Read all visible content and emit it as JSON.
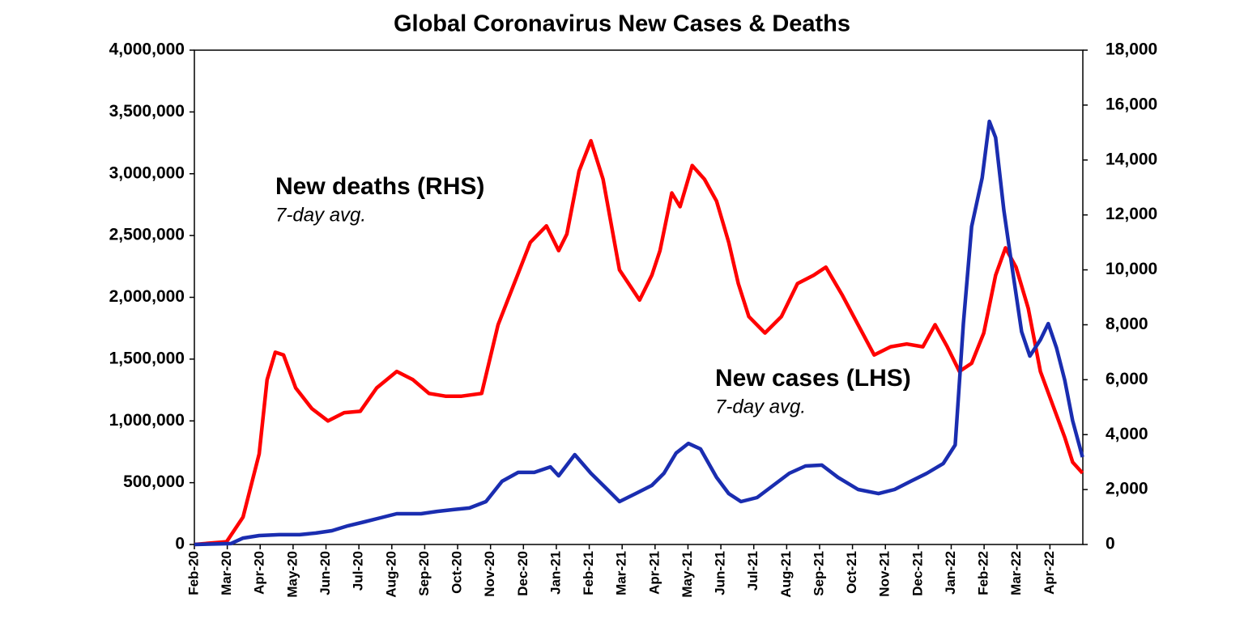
{
  "chart_data": {
    "type": "line",
    "title": "Global Coronavirus New Cases & Deaths",
    "xlim": [
      0,
      27
    ],
    "xticks": [
      {
        "value": 0,
        "label": "Feb-20"
      },
      {
        "value": 1,
        "label": "Mar-20"
      },
      {
        "value": 2,
        "label": "Apr-20"
      },
      {
        "value": 3,
        "label": "May-20"
      },
      {
        "value": 4,
        "label": "Jun-20"
      },
      {
        "value": 5,
        "label": "Jul-20"
      },
      {
        "value": 6,
        "label": "Aug-20"
      },
      {
        "value": 7,
        "label": "Sep-20"
      },
      {
        "value": 8,
        "label": "Oct-20"
      },
      {
        "value": 9,
        "label": "Nov-20"
      },
      {
        "value": 10,
        "label": "Dec-20"
      },
      {
        "value": 11,
        "label": "Jan-21"
      },
      {
        "value": 12,
        "label": "Feb-21"
      },
      {
        "value": 13,
        "label": "Mar-21"
      },
      {
        "value": 14,
        "label": "Apr-21"
      },
      {
        "value": 15,
        "label": "May-21"
      },
      {
        "value": 16,
        "label": "Jun-21"
      },
      {
        "value": 17,
        "label": "Jul-21"
      },
      {
        "value": 18,
        "label": "Aug-21"
      },
      {
        "value": 19,
        "label": "Sep-21"
      },
      {
        "value": 20,
        "label": "Oct-21"
      },
      {
        "value": 21,
        "label": "Nov-21"
      },
      {
        "value": 22,
        "label": "Dec-21"
      },
      {
        "value": 23,
        "label": "Jan-22"
      },
      {
        "value": 24,
        "label": "Feb-22"
      },
      {
        "value": 25,
        "label": "Mar-22"
      },
      {
        "value": 26,
        "label": "Apr-22"
      }
    ],
    "ylim": [
      0,
      4000000
    ],
    "yticks": [
      0,
      {
        "value": 500000,
        "label": "500,000"
      },
      {
        "value": 1000000,
        "label": "1,000,000"
      },
      {
        "value": 1500000,
        "label": "1,500,000"
      },
      {
        "value": 2000000,
        "label": "2,000,000"
      },
      {
        "value": 2500000,
        "label": "2,500,000"
      },
      {
        "value": 3000000,
        "label": "3,000,000"
      },
      {
        "value": 3500000,
        "label": "3,500,000"
      },
      {
        "value": 4000000,
        "label": "4,000,000"
      }
    ],
    "y2lim": [
      0,
      18000
    ],
    "y2ticks": [
      0,
      {
        "value": 2000,
        "label": "2,000"
      },
      {
        "value": 4000,
        "label": "4,000"
      },
      {
        "value": 6000,
        "label": "6,000"
      },
      {
        "value": 8000,
        "label": "8,000"
      },
      {
        "value": 10000,
        "label": "10,000"
      },
      {
        "value": 12000,
        "label": "12,000"
      },
      {
        "value": 14000,
        "label": "14,000"
      },
      {
        "value": 16000,
        "label": "16,000"
      },
      {
        "value": 18000,
        "label": "18,000"
      }
    ],
    "series": [
      {
        "name": "New deaths (RHS)",
        "subtitle": "7-day avg.",
        "color": "#ff0000",
        "axis": "y2",
        "x": [
          0,
          0.98,
          1.48,
          1.97,
          2.21,
          2.46,
          2.71,
          3.08,
          3.57,
          4.06,
          4.55,
          5.04,
          5.54,
          6.15,
          6.64,
          7.13,
          7.63,
          8.12,
          8.73,
          9.23,
          9.72,
          10.21,
          10.7,
          11.07,
          11.32,
          11.69,
          12.05,
          12.42,
          12.92,
          13.53,
          13.9,
          14.15,
          14.51,
          14.76,
          15.13,
          15.5,
          15.87,
          16.24,
          16.53,
          16.85,
          17.34,
          17.84,
          18.33,
          18.82,
          19.19,
          19.68,
          20.17,
          20.66,
          21.16,
          21.65,
          22.14,
          22.51,
          22.88,
          23.25,
          23.62,
          23.99,
          24.35,
          24.65,
          24.97,
          25.34,
          25.71,
          26.08,
          26.45,
          26.69,
          26.99
        ],
        "values": [
          0,
          100,
          1000,
          3300,
          6000,
          7000,
          6900,
          5700,
          4950,
          4500,
          4800,
          4850,
          5700,
          6300,
          6000,
          5500,
          5400,
          5400,
          5500,
          8000,
          9500,
          11000,
          11600,
          10700,
          11300,
          13600,
          14700,
          13300,
          10000,
          8900,
          9800,
          10700,
          12800,
          12300,
          13800,
          13300,
          12500,
          11000,
          9500,
          8300,
          7700,
          8300,
          9500,
          9800,
          10100,
          9100,
          8000,
          6900,
          7200,
          7300,
          7200,
          8000,
          7200,
          6300,
          6600,
          7700,
          9800,
          10800,
          10100,
          8600,
          6300,
          5100,
          3900,
          3000,
          2600
        ]
      },
      {
        "name": "New cases (LHS)",
        "subtitle": "7-day avg.",
        "color": "#1a2db0",
        "axis": "y",
        "x": [
          0,
          1.11,
          1.48,
          1.97,
          2.58,
          3.2,
          3.69,
          4.18,
          4.67,
          5.17,
          5.66,
          6.15,
          6.89,
          7.38,
          7.87,
          8.36,
          8.86,
          9.35,
          9.84,
          10.33,
          10.82,
          11.07,
          11.56,
          12.05,
          12.55,
          12.92,
          13.41,
          13.9,
          14.27,
          14.64,
          15.01,
          15.38,
          15.87,
          16.24,
          16.61,
          17.1,
          17.59,
          18.08,
          18.57,
          19.07,
          19.56,
          20.17,
          20.79,
          21.28,
          21.77,
          22.26,
          22.76,
          23.12,
          23.37,
          23.62,
          23.94,
          24.16,
          24.35,
          24.6,
          24.85,
          25.14,
          25.39,
          25.71,
          25.95,
          26.2,
          26.45,
          26.69,
          26.99
        ],
        "values": [
          0,
          7000,
          52000,
          72000,
          79000,
          79000,
          92000,
          111000,
          151000,
          183000,
          216000,
          249000,
          249000,
          268000,
          282000,
          295000,
          347000,
          511000,
          583000,
          583000,
          628000,
          556000,
          727000,
          576000,
          445000,
          347000,
          412000,
          478000,
          576000,
          740000,
          818000,
          773000,
          543000,
          412000,
          347000,
          380000,
          478000,
          576000,
          635000,
          642000,
          543000,
          445000,
          412000,
          445000,
          511000,
          576000,
          655000,
          805000,
          1787000,
          2573000,
          2966000,
          3424000,
          3293000,
          2704000,
          2245000,
          1722000,
          1525000,
          1656000,
          1787000,
          1591000,
          1329000,
          1002000,
          707000
        ]
      }
    ]
  }
}
